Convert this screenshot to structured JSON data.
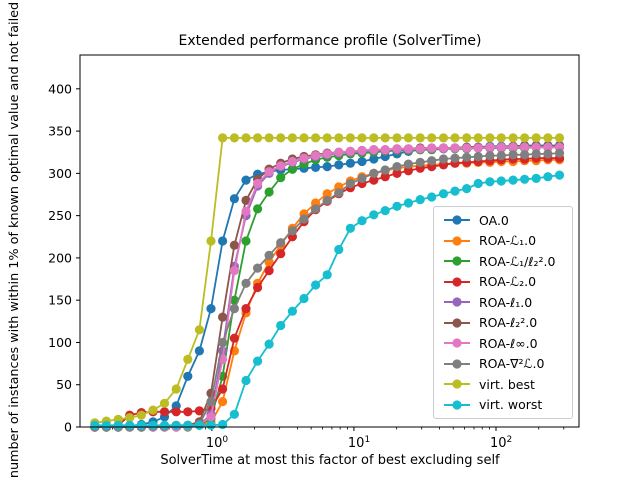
{
  "title": "Extended performance profile (SolverTime)",
  "xlabel": "SolverTime at most this factor of best excluding self",
  "ylabel": "number of instances with within 1% of known optimal value and not failed",
  "chart_data": {
    "type": "line",
    "title": "Extended performance profile (SolverTime)",
    "xlabel": "SolverTime at most this factor of best excluding self",
    "ylabel": "number of instances with within 1% of known optimal value and not failed",
    "x_scale": "log",
    "xlim": [
      0.118,
      384
    ],
    "ylim": [
      0,
      440
    ],
    "yticks": [
      0,
      50,
      100,
      150,
      200,
      250,
      300,
      350,
      400
    ],
    "x_major_tick_exponents": [
      0,
      1,
      2
    ],
    "x_minor_ticks": [
      0.2,
      0.3,
      0.4,
      0.5,
      0.6,
      0.7,
      0.8,
      0.9,
      2,
      3,
      4,
      5,
      6,
      7,
      8,
      9,
      20,
      30,
      40,
      50,
      60,
      70,
      80,
      90,
      200,
      300
    ],
    "grid": false,
    "legend_position": "lower right",
    "x": [
      0.15,
      0.181,
      0.219,
      0.264,
      0.319,
      0.385,
      0.464,
      0.561,
      0.677,
      0.817,
      0.986,
      1.19,
      1.44,
      1.74,
      2.1,
      2.53,
      3.05,
      3.69,
      4.45,
      5.37,
      6.49,
      7.83,
      9.45,
      11.4,
      13.8,
      16.6,
      20.1,
      24.2,
      29.3,
      35.3,
      42.7,
      51.5,
      62.2,
      75.0,
      90.6,
      109,
      132,
      159,
      192,
      232,
      280
    ],
    "series": [
      {
        "name": "OA.0",
        "color": "#1f77b4",
        "values": [
          0,
          0,
          1,
          1,
          3,
          6,
          12,
          25,
          60,
          90,
          140,
          220,
          270,
          292,
          299,
          302,
          304,
          305,
          306,
          307,
          308,
          310,
          312,
          314,
          317,
          320,
          323,
          326,
          328,
          329,
          330,
          330,
          331,
          331,
          332,
          332,
          332,
          333,
          333,
          333,
          333
        ]
      },
      {
        "name": "ROA-ℒ₁.0",
        "color": "#ff7f0e",
        "values": [
          0,
          0,
          0,
          0,
          0,
          0,
          0,
          0,
          2,
          3,
          5,
          30,
          90,
          135,
          170,
          195,
          215,
          235,
          252,
          265,
          276,
          284,
          291,
          296,
          300,
          303,
          306,
          308,
          309,
          310,
          311,
          312,
          312,
          313,
          313,
          314,
          314,
          315,
          315,
          316,
          316
        ]
      },
      {
        "name": "ROA-ℒ₁/ℓ₂².0",
        "color": "#2ca02c",
        "values": [
          0,
          0,
          0,
          0,
          0,
          0,
          0,
          0,
          0,
          2,
          10,
          60,
          150,
          220,
          258,
          278,
          295,
          305,
          311,
          316,
          319,
          321,
          323,
          324,
          325,
          326,
          327,
          327,
          328,
          328,
          329,
          329,
          329,
          330,
          330,
          330,
          330,
          330,
          331,
          331,
          331
        ]
      },
      {
        "name": "ROA-ℒ₂.0",
        "color": "#d62728",
        "values": [
          0,
          0,
          2,
          14,
          17,
          18,
          18,
          18,
          18,
          19,
          22,
          45,
          105,
          140,
          165,
          185,
          205,
          225,
          243,
          257,
          267,
          276,
          283,
          288,
          292,
          296,
          300,
          303,
          306,
          308,
          310,
          312,
          313,
          314,
          315,
          316,
          317,
          317,
          318,
          318,
          318
        ]
      },
      {
        "name": "ROA-ℓ₁.0",
        "color": "#9467bd",
        "values": [
          0,
          0,
          0,
          0,
          0,
          0,
          0,
          0,
          1,
          2,
          15,
          90,
          190,
          250,
          285,
          300,
          308,
          313,
          317,
          320,
          322,
          324,
          325,
          326,
          327,
          327,
          328,
          328,
          329,
          329,
          329,
          330,
          330,
          330,
          330,
          330,
          331,
          331,
          331,
          331,
          331
        ]
      },
      {
        "name": "ROA-ℓ₂².0",
        "color": "#8c564b",
        "values": [
          0,
          0,
          0,
          0,
          0,
          0,
          0,
          1,
          2,
          6,
          40,
          130,
          215,
          268,
          293,
          305,
          312,
          317,
          320,
          322,
          324,
          325,
          326,
          327,
          328,
          328,
          329,
          329,
          330,
          330,
          330,
          330,
          331,
          331,
          331,
          331,
          332,
          332,
          332,
          332,
          332
        ]
      },
      {
        "name": "ROA-ℓ∞.0",
        "color": "#e377c2",
        "values": [
          0,
          0,
          0,
          0,
          0,
          0,
          0,
          0,
          1,
          3,
          12,
          80,
          185,
          255,
          288,
          302,
          309,
          314,
          318,
          321,
          323,
          325,
          326,
          327,
          328,
          328,
          329,
          329,
          329,
          330,
          330,
          330,
          330,
          330,
          331,
          331,
          331,
          331,
          331,
          331,
          331
        ]
      },
      {
        "name": "ROA-∇²ℒ.0",
        "color": "#7f7f7f",
        "values": [
          0,
          0,
          0,
          0,
          0,
          1,
          1,
          2,
          2,
          3,
          30,
          100,
          140,
          170,
          188,
          203,
          218,
          232,
          246,
          258,
          268,
          277,
          288,
          294,
          300,
          304,
          308,
          311,
          313,
          315,
          317,
          318,
          319,
          320,
          321,
          321,
          322,
          322,
          323,
          323,
          324
        ]
      },
      {
        "name": "virt. best",
        "color": "#bcbd22",
        "values": [
          5,
          7,
          9,
          11,
          14,
          20,
          28,
          45,
          80,
          115,
          220,
          342,
          342,
          342,
          342,
          342,
          342,
          342,
          342,
          342,
          342,
          342,
          342,
          342,
          342,
          342,
          342,
          342,
          342,
          342,
          342,
          342,
          342,
          342,
          342,
          342,
          342,
          342,
          342,
          342,
          342
        ]
      },
      {
        "name": "virt. worst",
        "color": "#17becf",
        "values": [
          2,
          2,
          2,
          2,
          2,
          2,
          2,
          2,
          2,
          2,
          2,
          3,
          15,
          55,
          78,
          98,
          120,
          137,
          152,
          168,
          180,
          210,
          235,
          244,
          251,
          256,
          261,
          265,
          269,
          272,
          276,
          279,
          282,
          288,
          290,
          291,
          292,
          293,
          294,
          296,
          298
        ]
      }
    ]
  }
}
